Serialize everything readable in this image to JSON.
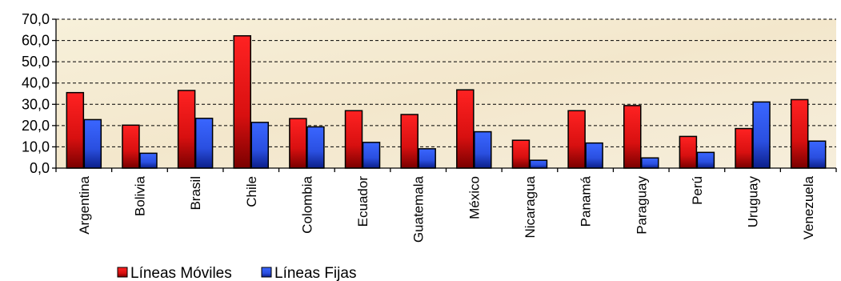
{
  "chart_data": {
    "type": "bar",
    "title": "",
    "xlabel": "",
    "ylabel": "",
    "ylim": [
      0,
      70
    ],
    "yticks": [
      "0,0",
      "10,0",
      "20,0",
      "30,0",
      "40,0",
      "50,0",
      "60,0",
      "70,0"
    ],
    "grid": true,
    "legend_position": "bottom-left",
    "categories": [
      "Argentina",
      "Bolivia",
      "Brasil",
      "Chile",
      "Colombia",
      "Ecuador",
      "Guatemala",
      "México",
      "Nicaragua",
      "Panamá",
      "Paraguay",
      "Perú",
      "Uruguay",
      "Venezuela"
    ],
    "series": [
      {
        "name": "Líneas Móviles",
        "color": "#e8141c",
        "values": [
          35.5,
          20.2,
          36.5,
          62.2,
          23.3,
          27.0,
          25.2,
          36.8,
          13.1,
          27.0,
          29.4,
          14.9,
          18.6,
          32.2
        ]
      },
      {
        "name": "Líneas Fijas",
        "color": "#2a4fe0",
        "values": [
          22.8,
          7.0,
          23.4,
          21.5,
          19.4,
          12.1,
          9.1,
          17.1,
          3.7,
          11.8,
          4.8,
          7.4,
          31.1,
          12.7
        ]
      }
    ]
  }
}
